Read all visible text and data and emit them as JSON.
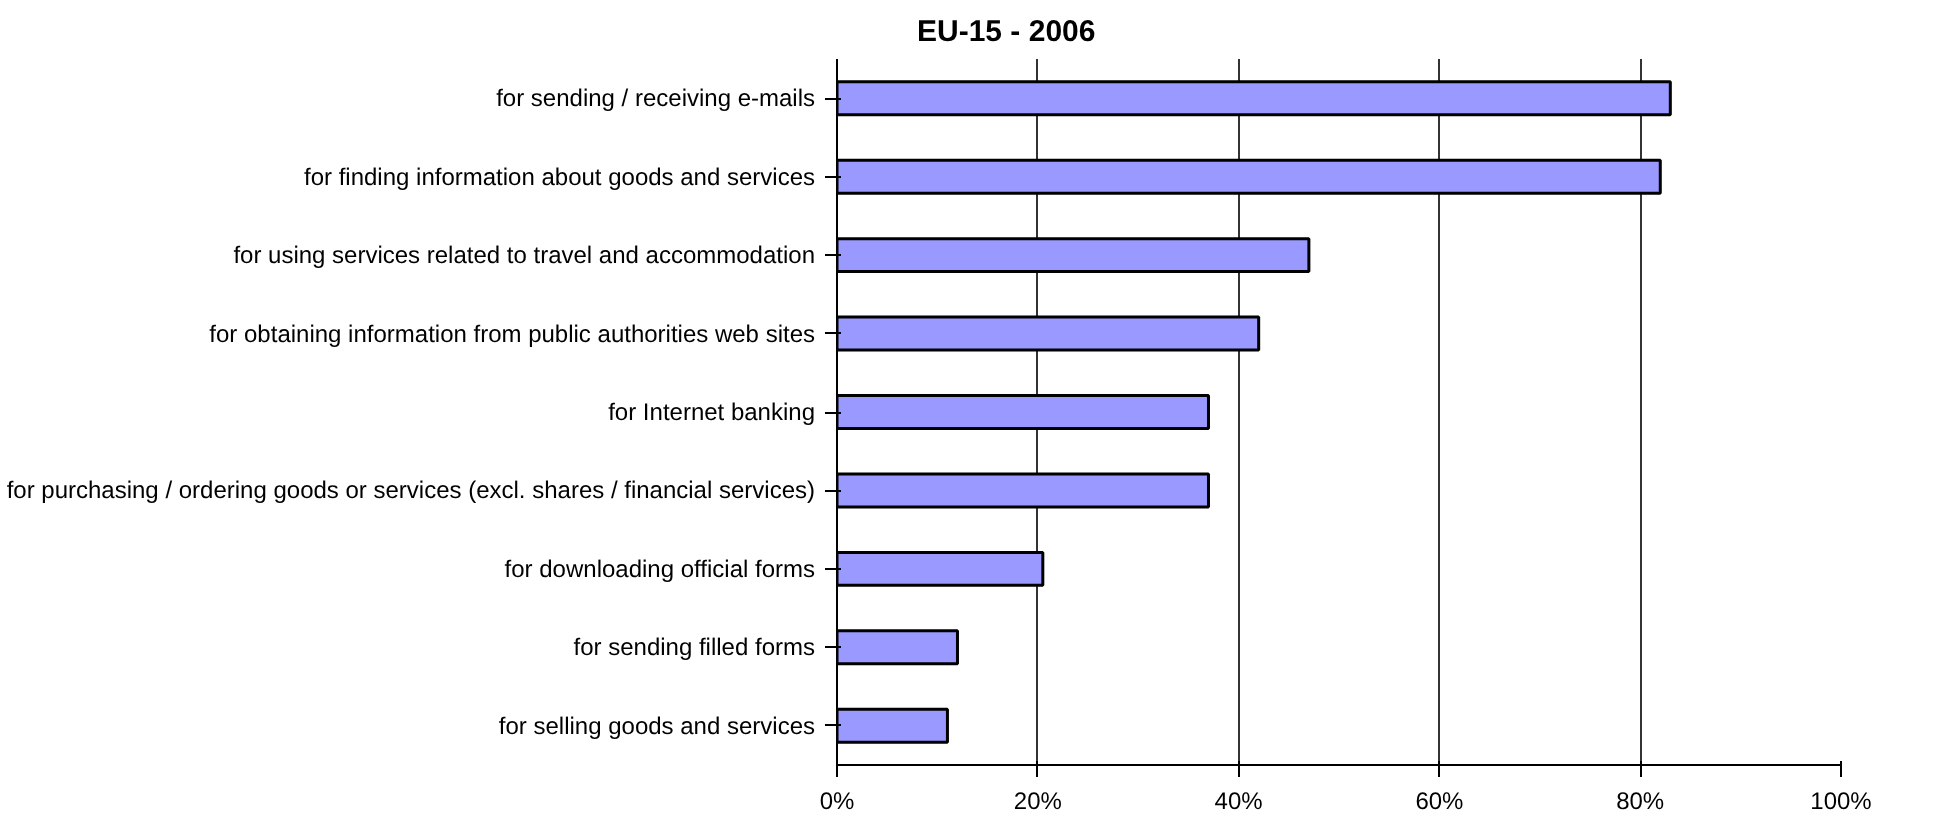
{
  "chart_data": {
    "type": "bar",
    "orientation": "horizontal",
    "title": "EU-15 - 2006",
    "categories": [
      "for sending / receiving e-mails",
      "for finding information about goods and services",
      "for using services related to travel and accommodation",
      "for obtaining information from public authorities web sites",
      "for Internet banking",
      "for purchasing / ordering goods or services (excl. shares / financial services)",
      "for downloading official forms",
      "for sending filled forms",
      "for selling goods and services"
    ],
    "values": [
      83,
      82,
      47,
      42,
      37,
      37,
      20.5,
      12,
      11
    ],
    "color": "#9999ff",
    "xlim": [
      0,
      100
    ],
    "xticks": [
      {
        "value": 0,
        "label": "0%"
      },
      {
        "value": 20,
        "label": "20%"
      },
      {
        "value": 40,
        "label": "40%"
      },
      {
        "value": 60,
        "label": "60%"
      },
      {
        "value": 80,
        "label": "80%"
      },
      {
        "value": 100,
        "label": "100%"
      }
    ],
    "grid": "x"
  }
}
